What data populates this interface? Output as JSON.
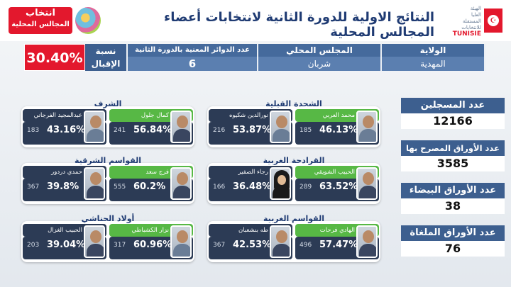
{
  "header": {
    "title": "النتائج الاولية للدورة الثانية لانتخابات أعضاء المجالس المحلية",
    "isie_lines": [
      "الهيئة",
      "العليا",
      "المستقلة",
      "للانتخابات"
    ],
    "isie_mark": "TUNISIE",
    "brand_line1": "انتخاب",
    "brand_line2": "المجالس المحلية",
    "flag_color": "#e3182d"
  },
  "info": {
    "wilaya_label": "الولاية",
    "wilaya_value": "المهدية",
    "council_label": "المجلس المحلي",
    "council_value": "شربان",
    "districts_label": "عدد الدوائر المعنية بالدورة الثانية",
    "districts_value": "6",
    "turnout_label": "نسبة الإقبال",
    "turnout_value": "30.40%"
  },
  "constituencies": [
    {
      "title": "الشحدة القبلية",
      "winner": {
        "name": "محمد العربي",
        "pct": "46.13%",
        "votes": "185"
      },
      "other": {
        "name": "نورالدين شكيوه",
        "pct": "53.87%",
        "votes": "216"
      }
    },
    {
      "title": "الشرف",
      "winner": {
        "name": "كمال جلول",
        "pct": "56.84%",
        "votes": "241"
      },
      "other": {
        "name": "عبدالمجيد الفرجاني",
        "pct": "43.16%",
        "votes": "183"
      }
    },
    {
      "title": "القرادحة الغربية",
      "winner": {
        "name": "الحبيب الشويقي",
        "pct": "63.52%",
        "votes": "289"
      },
      "other": {
        "name": "رجاء الصفير",
        "pct": "36.48%",
        "votes": "166"
      }
    },
    {
      "title": "القواسم الشرقية",
      "winner": {
        "name": "فرج سعد",
        "pct": "60.2%",
        "votes": "555"
      },
      "other": {
        "name": "حمدي دردور",
        "pct": "39.8%",
        "votes": "367"
      }
    },
    {
      "title": "القواسم الغربية",
      "winner": {
        "name": "الهادي فرحات",
        "pct": "57.47%",
        "votes": "496"
      },
      "other": {
        "name": "طه بنشعبان",
        "pct": "42.53%",
        "votes": "367"
      }
    },
    {
      "title": "أولاد الحناشي",
      "winner": {
        "name": "نزار الكشباطي",
        "pct": "60.96%",
        "votes": "317"
      },
      "other": {
        "name": "الحبيب الغزال",
        "pct": "39.04%",
        "votes": "203"
      }
    }
  ],
  "totals": [
    {
      "label": "عدد المسجلين",
      "value": "12166"
    },
    {
      "label": "عدد الأوراق المصرح بها",
      "value": "3585"
    },
    {
      "label": "عدد الأوراق البيضاء",
      "value": "38"
    },
    {
      "label": "عدد الأوراق الملغاة",
      "value": "76"
    }
  ],
  "colors": {
    "accent_red": "#e3182d",
    "panel_blue": "#3d5f8f",
    "winner_green": "#57b845",
    "dark_navy": "#2c3b55"
  }
}
